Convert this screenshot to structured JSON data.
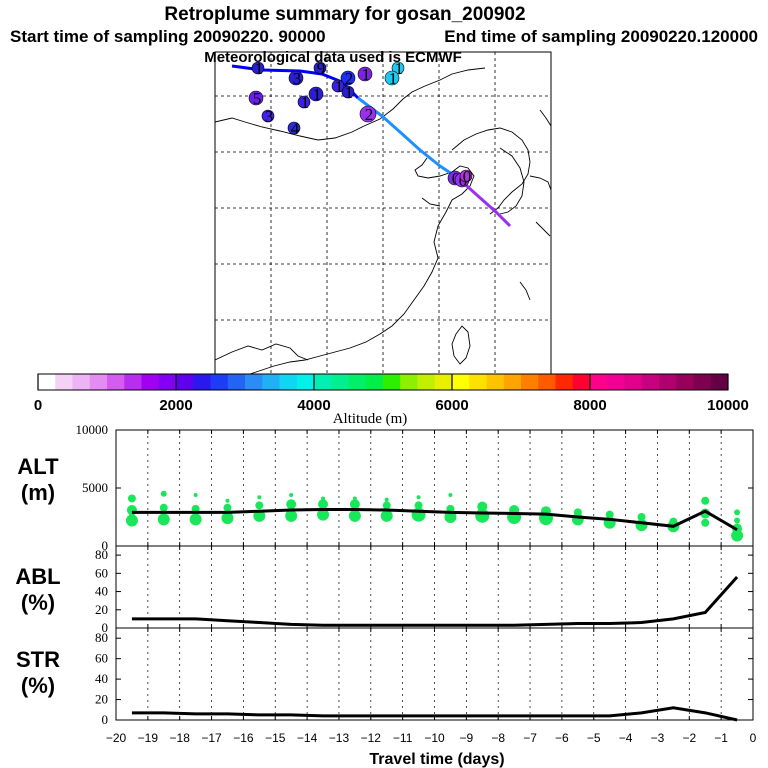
{
  "header": {
    "title": "Retroplume summary for gosan_200902",
    "start_label": "Start time of sampling 20090220. 90000",
    "end_label": "End time of sampling 20090220.120000",
    "met_label": "Meteorological data used is ECMWF"
  },
  "colorbar": {
    "colors": [
      "#ffffff",
      "#f5d2f5",
      "#eeb3f5",
      "#e58cf2",
      "#d45cf0",
      "#b82ef0",
      "#a100f2",
      "#8100f5",
      "#5f00f0",
      "#2b18ef",
      "#1c3cf5",
      "#2464f5",
      "#2c8cf5",
      "#20b0f5",
      "#10d6f5",
      "#00f0ea",
      "#00f0b4",
      "#00f090",
      "#00f06a",
      "#00f046",
      "#2cf000",
      "#8cf000",
      "#c0f000",
      "#e8f000",
      "#ffff00",
      "#ffe100",
      "#ffc400",
      "#ffa400",
      "#ff7f00",
      "#ff5a00",
      "#ff2800",
      "#ff0032",
      "#ff008c",
      "#f20096",
      "#e0008c",
      "#c80080",
      "#b00070",
      "#98005c",
      "#7f0050",
      "#660044"
    ],
    "tick_labels": [
      "0",
      "2000",
      "4000",
      "6000",
      "8000",
      "10000"
    ],
    "title": "Altitude (m)",
    "range": [
      0,
      10000
    ]
  },
  "map": {
    "trajectory_colors": [
      "#0000ff",
      "#1e90ff",
      "#9a30f0"
    ],
    "markers": [
      {
        "label": "1",
        "color": "#2a1fd0"
      },
      {
        "label": "9",
        "color": "#2a1fd0"
      },
      {
        "label": "3",
        "color": "#2a1fd0"
      },
      {
        "label": "1",
        "color": "#2a1fd0"
      },
      {
        "label": "2",
        "color": "#1f2ff0"
      },
      {
        "label": "1",
        "color": "#7b22e0"
      },
      {
        "label": "1",
        "color": "#20c8ef"
      },
      {
        "label": "1",
        "color": "#20c8ef"
      },
      {
        "label": "5",
        "color": "#6a1fe8"
      },
      {
        "label": "1",
        "color": "#3a20e6"
      },
      {
        "label": "4",
        "color": "#2a2ad8"
      },
      {
        "label": "3",
        "color": "#4422e8"
      },
      {
        "label": "2",
        "color": "#9a30f0"
      },
      {
        "label": "1",
        "color": "#3a20e6"
      },
      {
        "label": "1",
        "color": "#2a1fd0"
      },
      {
        "label": "0",
        "color": "#7a2ae8"
      },
      {
        "label": "0",
        "color": "#9a30f0"
      },
      {
        "label": "0",
        "color": "#b030e0"
      }
    ]
  },
  "chart_data": [
    {
      "type": "line",
      "name": "ALT",
      "ylabel": [
        "ALT",
        "(m)"
      ],
      "xlabel": "Travel time (days)",
      "xlim": [
        -20,
        0
      ],
      "ylim": [
        0,
        10000
      ],
      "ytick_labels": [
        "0",
        "5000",
        "10000"
      ],
      "x": [
        -19.5,
        -18.5,
        -17.5,
        -16.5,
        -15.5,
        -14.5,
        -13.5,
        -12.5,
        -11.5,
        -10.5,
        -9.5,
        -8.5,
        -7.5,
        -6.5,
        -5.5,
        -4.5,
        -3.5,
        -2.5,
        -1.5,
        -0.5
      ],
      "values": [
        2900,
        2900,
        2900,
        2900,
        3000,
        3100,
        3150,
        3150,
        3100,
        3000,
        2900,
        2850,
        2800,
        2750,
        2500,
        2300,
        2000,
        1700,
        3000,
        1400
      ],
      "scatter_color": "#19e75a",
      "scatter": [
        {
          "x": -19.5,
          "y": 2200,
          "s": 6
        },
        {
          "x": -19.5,
          "y": 3100,
          "s": 5
        },
        {
          "x": -19.5,
          "y": 4100,
          "s": 4
        },
        {
          "x": -19.5,
          "y": 2600,
          "s": 3
        },
        {
          "x": -18.5,
          "y": 2300,
          "s": 6
        },
        {
          "x": -18.5,
          "y": 3300,
          "s": 4
        },
        {
          "x": -18.5,
          "y": 4500,
          "s": 3
        },
        {
          "x": -17.5,
          "y": 2300,
          "s": 6
        },
        {
          "x": -17.5,
          "y": 3200,
          "s": 4
        },
        {
          "x": -17.5,
          "y": 4400,
          "s": 2
        },
        {
          "x": -16.5,
          "y": 2400,
          "s": 6
        },
        {
          "x": -16.5,
          "y": 3300,
          "s": 4
        },
        {
          "x": -16.5,
          "y": 3900,
          "s": 2
        },
        {
          "x": -15.5,
          "y": 2600,
          "s": 6
        },
        {
          "x": -15.5,
          "y": 3500,
          "s": 4
        },
        {
          "x": -15.5,
          "y": 4200,
          "s": 2
        },
        {
          "x": -14.5,
          "y": 2600,
          "s": 6
        },
        {
          "x": -14.5,
          "y": 3600,
          "s": 5
        },
        {
          "x": -14.5,
          "y": 4400,
          "s": 2
        },
        {
          "x": -13.5,
          "y": 2700,
          "s": 6
        },
        {
          "x": -13.5,
          "y": 3600,
          "s": 5
        },
        {
          "x": -13.5,
          "y": 4100,
          "s": 2
        },
        {
          "x": -12.5,
          "y": 2600,
          "s": 6
        },
        {
          "x": -12.5,
          "y": 3600,
          "s": 5
        },
        {
          "x": -12.5,
          "y": 4100,
          "s": 2
        },
        {
          "x": -11.5,
          "y": 2600,
          "s": 6
        },
        {
          "x": -11.5,
          "y": 3500,
          "s": 4
        },
        {
          "x": -11.5,
          "y": 4000,
          "s": 2
        },
        {
          "x": -10.5,
          "y": 2700,
          "s": 7
        },
        {
          "x": -10.5,
          "y": 3500,
          "s": 4
        },
        {
          "x": -10.5,
          "y": 4200,
          "s": 2
        },
        {
          "x": -9.5,
          "y": 2500,
          "s": 6
        },
        {
          "x": -9.5,
          "y": 3200,
          "s": 4
        },
        {
          "x": -9.5,
          "y": 4400,
          "s": 2
        },
        {
          "x": -8.5,
          "y": 2600,
          "s": 7
        },
        {
          "x": -8.5,
          "y": 3400,
          "s": 5
        },
        {
          "x": -7.5,
          "y": 2500,
          "s": 7
        },
        {
          "x": -7.5,
          "y": 3100,
          "s": 5
        },
        {
          "x": -6.5,
          "y": 2400,
          "s": 7
        },
        {
          "x": -6.5,
          "y": 3000,
          "s": 5
        },
        {
          "x": -5.5,
          "y": 2300,
          "s": 6
        },
        {
          "x": -5.5,
          "y": 2900,
          "s": 4
        },
        {
          "x": -4.5,
          "y": 2000,
          "s": 6
        },
        {
          "x": -4.5,
          "y": 2700,
          "s": 4
        },
        {
          "x": -3.5,
          "y": 1800,
          "s": 6
        },
        {
          "x": -3.5,
          "y": 2500,
          "s": 4
        },
        {
          "x": -2.5,
          "y": 1700,
          "s": 6
        },
        {
          "x": -2.5,
          "y": 2100,
          "s": 4
        },
        {
          "x": -1.5,
          "y": 3900,
          "s": 4
        },
        {
          "x": -1.5,
          "y": 2800,
          "s": 5
        },
        {
          "x": -1.5,
          "y": 2000,
          "s": 4
        },
        {
          "x": -0.5,
          "y": 2900,
          "s": 3
        },
        {
          "x": -0.5,
          "y": 1500,
          "s": 5
        },
        {
          "x": -0.5,
          "y": 900,
          "s": 6
        },
        {
          "x": -0.5,
          "y": 2200,
          "s": 3
        }
      ]
    },
    {
      "type": "line",
      "name": "ABL",
      "ylabel": [
        "ABL",
        "(%)"
      ],
      "xlim": [
        -20,
        0
      ],
      "ylim": [
        0,
        90
      ],
      "ytick_labels": [
        "0",
        "20",
        "40",
        "60",
        "80"
      ],
      "yticks": [
        0,
        20,
        40,
        60,
        80
      ],
      "x": [
        -19.5,
        -18.5,
        -17.5,
        -16.5,
        -15.5,
        -14.5,
        -13.5,
        -12.5,
        -11.5,
        -10.5,
        -9.5,
        -8.5,
        -7.5,
        -6.5,
        -5.5,
        -4.5,
        -3.5,
        -2.5,
        -1.5,
        -0.5
      ],
      "values": [
        10,
        10,
        10,
        8,
        6,
        4,
        3,
        3,
        3,
        3,
        3,
        3,
        3,
        4,
        5,
        5,
        6,
        10,
        17,
        56
      ]
    },
    {
      "type": "line",
      "name": "STR",
      "ylabel": [
        "STR",
        "(%)"
      ],
      "xlim": [
        -20,
        0
      ],
      "ylim": [
        0,
        90
      ],
      "ytick_labels": [
        "0",
        "20",
        "40",
        "60",
        "80"
      ],
      "yticks": [
        0,
        20,
        40,
        60,
        80
      ],
      "x": [
        -19.5,
        -18.5,
        -17.5,
        -16.5,
        -15.5,
        -14.5,
        -13.5,
        -12.5,
        -11.5,
        -10.5,
        -9.5,
        -8.5,
        -7.5,
        -6.5,
        -5.5,
        -4.5,
        -3.5,
        -2.5,
        -1.5,
        -0.5
      ],
      "values": [
        7,
        7,
        6,
        6,
        5,
        5,
        4,
        4,
        4,
        4,
        4,
        4,
        4,
        4,
        4,
        4,
        7,
        12,
        7,
        0
      ],
      "xticks": [
        -20,
        -19,
        -18,
        -17,
        -16,
        -15,
        -14,
        -13,
        -12,
        -11,
        -10,
        -9,
        -8,
        -7,
        -6,
        -5,
        -4,
        -3,
        -2,
        -1,
        0
      ],
      "xtick_labels": [
        "-20",
        "-19",
        "-18",
        "-17",
        "-16",
        "-15",
        "-14",
        "-13",
        "-12",
        "-11",
        "-10",
        "-9",
        "-8",
        "-7",
        "-6",
        "-5",
        "-4",
        "-3",
        "-2",
        "-1",
        "0"
      ]
    }
  ]
}
